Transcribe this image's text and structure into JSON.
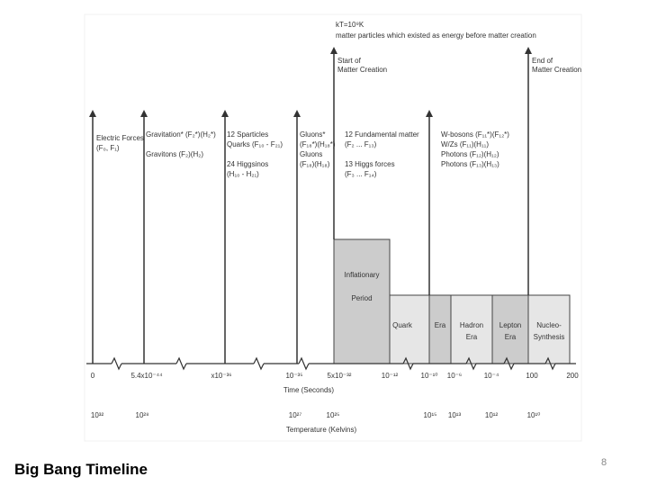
{
  "slide": {
    "title": "Big Bang Timeline",
    "page_number": "8"
  },
  "diagram": {
    "top_notes": {
      "temperature": "kT=10⁹K",
      "description": "matter particles which existed as energy before matter creation"
    },
    "markers": {
      "start_matter_creation": [
        "Start of",
        "Matter Creation"
      ],
      "end_matter_creation": [
        "End of",
        "Matter Creation"
      ]
    },
    "events": [
      [
        "Electric Forces",
        "(F₀, F₁)"
      ],
      [
        "Gravitation* (F₂*)(H₂*)",
        "",
        "Gravitons (F₂)(H₂)"
      ],
      [
        "12 Sparticles",
        "Quarks (F₁₀ - F₂₁)",
        "",
        "24 Higgsinos",
        "(H₁₀ - H₂₁)"
      ],
      [
        "Gluons*",
        "(F₁₈*)(H₁₈*)",
        "Gluons",
        "(F₁₈)(H₁₈)"
      ],
      [
        "12 Fundamental matter",
        "(F₂ ... F₁₃)",
        "",
        "13 Higgs forces",
        "(F₃ ... F₁₄)"
      ],
      [
        "W-bosons (F₁₁*)(F₁₂*)",
        "W/Zs (F₁₁)(H₁₁)",
        "Photons (F₁₂)(H₁₂)",
        "Photons (F₁₃)(H₁₃)"
      ]
    ],
    "eras": [
      "Inflationary",
      "Period",
      "Quark",
      "Era",
      "Hadron",
      "Era",
      "Lepton",
      "Era",
      "Nucleo-",
      "Synthesis"
    ],
    "time_axis": {
      "label": "Time (Seconds)",
      "ticks": [
        "0",
        "5.4x10⁻⁴⁴",
        "x10⁻³⁶",
        "10⁻³⁵",
        "5x10⁻³²",
        "10⁻¹²",
        "10⁻¹⁰",
        "10⁻⁶",
        "10⁻⁴",
        "100",
        "200"
      ]
    },
    "temperature_axis": {
      "label": "Temperature (Kelvins)",
      "ticks": [
        "10³²",
        "10²⁸",
        "10²⁷",
        "10²⁵",
        "10¹⁵",
        "10¹³",
        "10¹²",
        "10¹⁰"
      ]
    },
    "colors": {
      "line": "#333333",
      "text": "#333333",
      "shade": "#cccccc",
      "box_light": "#e6e6e6"
    }
  }
}
